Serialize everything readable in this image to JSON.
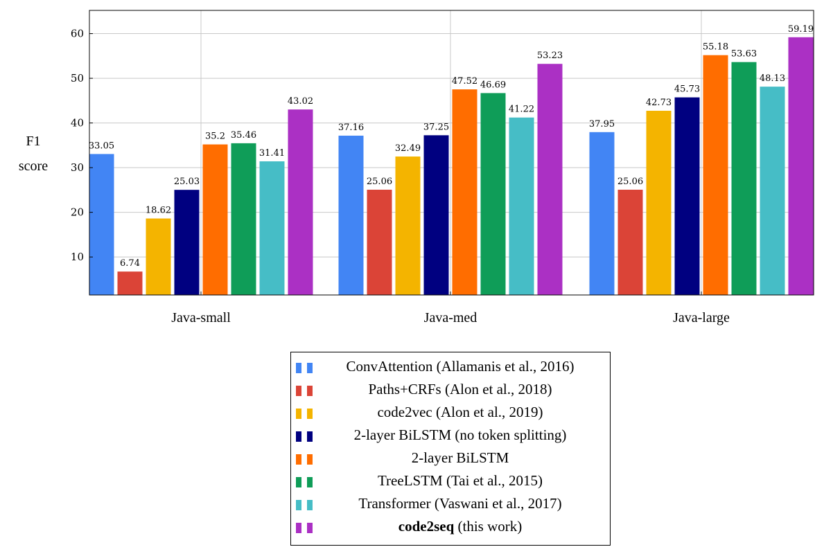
{
  "chart_data": {
    "type": "bar",
    "categories": [
      "Java-small",
      "Java-med",
      "Java-large"
    ],
    "ylabel": [
      "F1",
      "score"
    ],
    "ylim": [
      1.5,
      65.2
    ],
    "yticks": [
      10,
      20,
      30,
      40,
      50,
      60
    ],
    "grid": true,
    "legend_position": "bottom",
    "series": [
      {
        "name": "ConvAttention (Allamanis et al., 2016)",
        "color": "#4285f4",
        "values": [
          33.05,
          37.16,
          37.95
        ],
        "labels": [
          "33.05",
          "37.16",
          "37.95"
        ]
      },
      {
        "name": "Paths+CRFs (Alon et al., 2018)",
        "color": "#db4437",
        "values": [
          6.74,
          25.06,
          25.06
        ],
        "labels": [
          "6.74",
          "25.06",
          "25.06"
        ]
      },
      {
        "name": "code2vec (Alon et al., 2019)",
        "color": "#f4b400",
        "values": [
          18.62,
          32.49,
          42.73
        ],
        "labels": [
          "18.62",
          "32.49",
          "42.73"
        ]
      },
      {
        "name": "2-layer BiLSTM (no token splitting)",
        "color": "#000080",
        "values": [
          25.03,
          37.25,
          45.73
        ],
        "labels": [
          "25.03",
          "37.25",
          "45.73"
        ]
      },
      {
        "name": "2-layer BiLSTM",
        "color": "#ff6d00",
        "values": [
          35.2,
          47.52,
          55.18
        ],
        "labels": [
          "35.2",
          "47.52",
          "55.18"
        ]
      },
      {
        "name": "TreeLSTM (Tai et al., 2015)",
        "color": "#0f9d58",
        "values": [
          35.46,
          46.69,
          53.63
        ],
        "labels": [
          "35.46",
          "46.69",
          "53.63"
        ]
      },
      {
        "name": "Transformer (Vaswani et al., 2017)",
        "color": "#46bdc6",
        "values": [
          31.41,
          41.22,
          48.13
        ],
        "labels": [
          "31.41",
          "41.22",
          "48.13"
        ]
      },
      {
        "name_bold": "code2seq",
        "name_rest": " (this work)",
        "color": "#ab30c4",
        "values": [
          43.02,
          53.23,
          59.19
        ],
        "labels": [
          "43.02",
          "53.23",
          "59.19"
        ]
      }
    ]
  }
}
